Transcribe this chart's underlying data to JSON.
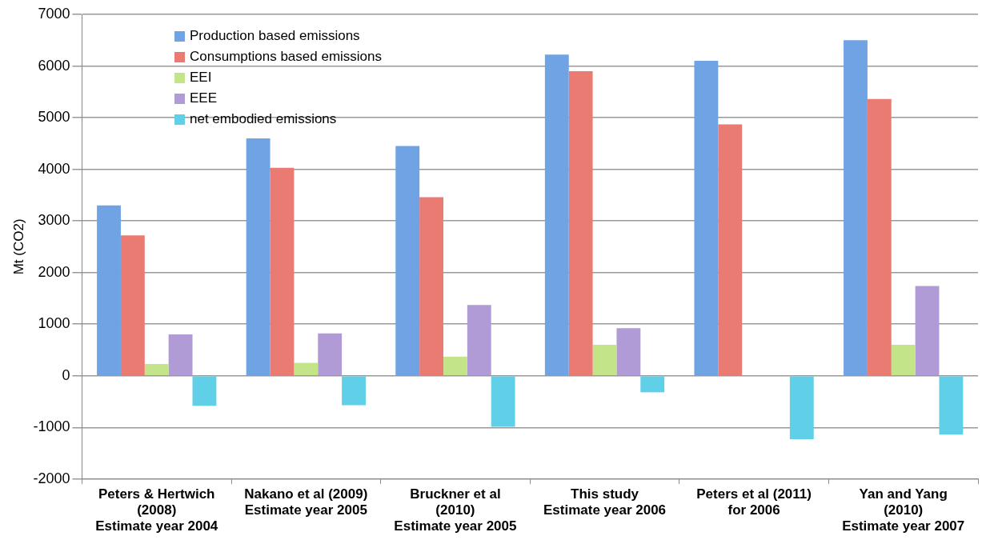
{
  "chart_data": {
    "type": "bar",
    "ylabel": "Mt (CO2)",
    "categories": [
      "Peters & Hertwich\n(2008)\nEstimate year 2004",
      "Nakano et al (2009)\nEstimate year 2005",
      "Bruckner et al\n(2010)\nEstimate year 2005",
      "This study\nEstimate year 2006",
      "Peters et al (2011)\nfor 2006",
      "Yan and Yang\n(2010)\nEstimate year 2007"
    ],
    "series": [
      {
        "name": "Production based emissions",
        "color": "#6fa3e4",
        "values": [
          3300,
          4600,
          4450,
          6220,
          6100,
          6500
        ]
      },
      {
        "name": "Consumptions based emissions",
        "color": "#e97b72",
        "values": [
          2720,
          4030,
          3460,
          5900,
          4870,
          5360
        ]
      },
      {
        "name": "EEI",
        "color": "#c4e48a",
        "values": [
          230,
          250,
          370,
          600,
          null,
          600
        ]
      },
      {
        "name": "EEE",
        "color": "#b19bd6",
        "values": [
          800,
          820,
          1370,
          920,
          null,
          1740
        ]
      },
      {
        "name": "net embodied emissions",
        "color": "#5fd0e8",
        "values": [
          -580,
          -570,
          -990,
          -320,
          -1230,
          -1140
        ]
      }
    ],
    "ylim": [
      -2000,
      7000
    ],
    "yticks": [
      -2000,
      -1000,
      0,
      1000,
      2000,
      3000,
      4000,
      5000,
      6000,
      7000
    ],
    "grid": "y",
    "legend": "top left"
  }
}
